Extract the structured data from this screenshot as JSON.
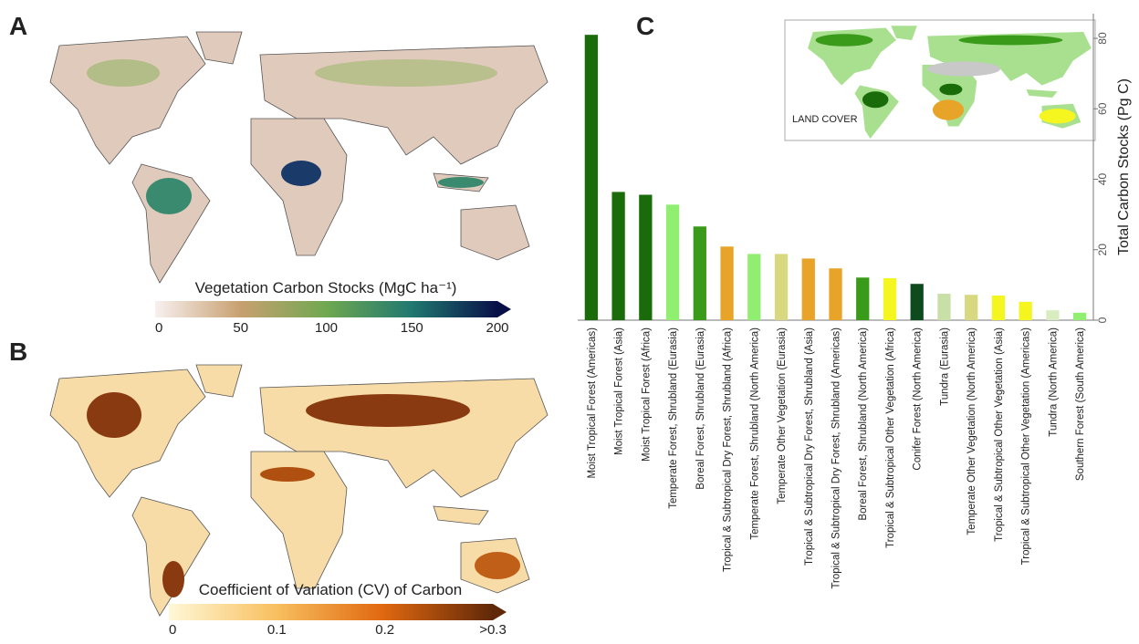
{
  "panels": {
    "a": {
      "label": "A",
      "colorbar": {
        "title": "Vegetation Carbon Stocks (MgC ha⁻¹)",
        "lim": [
          0,
          200
        ],
        "ticks": [
          0,
          50,
          100,
          150,
          200
        ]
      }
    },
    "b": {
      "label": "B",
      "colorbar": {
        "title": "Coefficient of Variation (CV) of Carbon",
        "lim": [
          0,
          0.3
        ],
        "ticks": [
          0,
          0.1,
          0.2,
          {
            "value": 0.3,
            "label": ">0.3"
          }
        ]
      }
    }
  },
  "chart_data": {
    "type": "bar",
    "panel_label": "C",
    "inset_label": "LAND COVER",
    "y_label": "Total Carbon Stocks (Pg C)",
    "axis_side": "right",
    "categories": [
      "Moist Tropical Forest (Americas)",
      "Moist Tropical Forest (Asia)",
      "Moist Tropical Forest (Africa)",
      "Temperate Forest, Shrubland (Eurasia)",
      "Boreal Forest, Shrubland (Eurasia)",
      "Tropical & Subtropical Dry Forest, Shrubland (Africa)",
      "Temperate Forest, Shrubland (North America)",
      "Temperate Other Vegetation (Eurasia)",
      "Tropical & Subtropical Dry Forest, Shrubland (Asia)",
      "Tropical & Subtropical Dry Forest, Shrubland (Americas)",
      "Boreal Forest, Shrubland (North America)",
      "Tropical & Subtropical Other Vegetation (Africa)",
      "Conifer Forest (North America)",
      "Tundra (Eurasia)",
      "Temperate Other Vegetation (North America)",
      "Tropical & Subtropical Other Vegetation (Asia)",
      "Tropical & Subtropical Other Vegetation (Americas)",
      "Tundra (North America)",
      "Southern Forest (South America)"
    ],
    "values": [
      81.0,
      36.4,
      35.6,
      32.8,
      26.6,
      20.9,
      18.8,
      18.8,
      17.5,
      14.7,
      12.1,
      11.9,
      10.3,
      7.5,
      7.2,
      7.0,
      5.2,
      2.8,
      2.1
    ],
    "colors": [
      "#1a6b0a",
      "#1a6b0a",
      "#1a6b0a",
      "#90ee70",
      "#3a9a1a",
      "#e8a428",
      "#90ee70",
      "#d8d880",
      "#e8a428",
      "#e8a428",
      "#3a9a1a",
      "#f5f520",
      "#0d4a1e",
      "#c8e0a8",
      "#d8d880",
      "#f5f520",
      "#f5f520",
      "#d8ecc0",
      "#90ee70"
    ],
    "ylim": [
      0,
      87
    ],
    "yticks": [
      0,
      20,
      40,
      60,
      80
    ]
  }
}
